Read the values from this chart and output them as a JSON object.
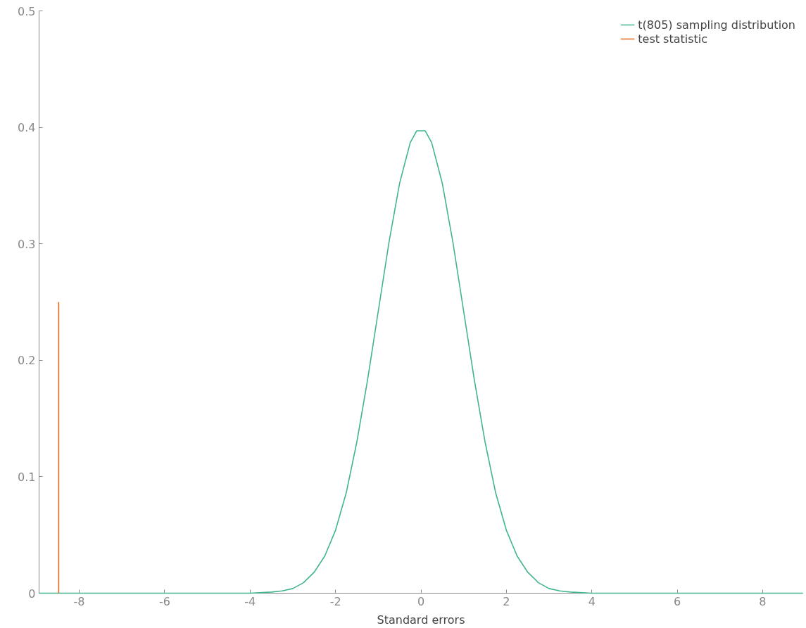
{
  "chart_data": {
    "type": "line",
    "xlabel": "Standard errors",
    "xlim": [
      -8.94,
      8.94
    ],
    "ylim": [
      0,
      0.5
    ],
    "xticks": [
      -8,
      -6,
      -4,
      -2,
      0,
      2,
      4,
      6,
      8
    ],
    "yticks": [
      0,
      0.1,
      0.2,
      0.3,
      0.4,
      0.5
    ],
    "grid": false,
    "legend": "top right",
    "series": [
      {
        "name": "t(805) sampling distribution",
        "color": "#42b68a",
        "x": [
          -8.94,
          -5,
          -4,
          -3.5,
          -3.25,
          -3,
          -2.75,
          -2.5,
          -2.25,
          -2,
          -1.75,
          -1.5,
          -1.25,
          -1,
          -0.75,
          -0.5,
          -0.25,
          -0.1,
          0.1,
          0.25,
          0.5,
          0.75,
          1,
          1.25,
          1.5,
          1.75,
          2,
          2.25,
          2.5,
          2.75,
          3,
          3.25,
          3.5,
          4,
          5,
          8.94
        ],
        "values": [
          0,
          0,
          0.0,
          0.001,
          0.002,
          0.004,
          0.009,
          0.018,
          0.032,
          0.054,
          0.086,
          0.13,
          0.183,
          0.242,
          0.301,
          0.352,
          0.387,
          0.397,
          0.397,
          0.387,
          0.352,
          0.301,
          0.242,
          0.183,
          0.13,
          0.086,
          0.054,
          0.032,
          0.018,
          0.009,
          0.004,
          0.002,
          0.001,
          0.0,
          0,
          0
        ]
      },
      {
        "name": "test statistic",
        "color": "#e0671a",
        "x": [
          -8.48,
          -8.48
        ],
        "values": [
          0,
          0.25
        ]
      }
    ]
  }
}
